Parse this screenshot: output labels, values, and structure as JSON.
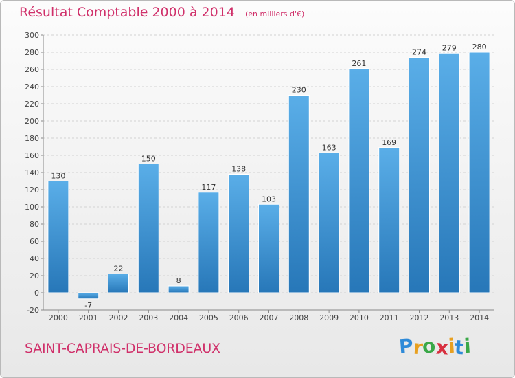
{
  "chart_data": {
    "type": "bar",
    "title": "Résultat Comptable 2000 à 2014",
    "subtitle": "(en milliers d'€)",
    "categories": [
      "2000",
      "2001",
      "2002",
      "2003",
      "2004",
      "2005",
      "2006",
      "2007",
      "2008",
      "2009",
      "2010",
      "2011",
      "2012",
      "2013",
      "2014"
    ],
    "values": [
      130,
      -7,
      22,
      150,
      8,
      117,
      138,
      103,
      230,
      163,
      261,
      169,
      274,
      279,
      280
    ],
    "ylim": [
      -20,
      300
    ],
    "yticks": [
      -20,
      0,
      20,
      40,
      60,
      80,
      100,
      120,
      140,
      160,
      180,
      200,
      220,
      240,
      260,
      280,
      300
    ],
    "grid": true,
    "bar_color_top": "#5aaee8",
    "bar_color_bottom": "#2777b8"
  },
  "footer": {
    "commune": "SAINT-CAPRAIS-DE-BORDEAUX"
  },
  "logo": {
    "letters": [
      {
        "char": "P",
        "color": "#2e8ad8"
      },
      {
        "char": "r",
        "color": "#e8a020"
      },
      {
        "char": "o",
        "color": "#3aa848"
      },
      {
        "char": "x",
        "color": "#d83040"
      },
      {
        "char": "i",
        "color": "#e8a020"
      },
      {
        "char": "t",
        "color": "#2e8ad8"
      },
      {
        "char": "i",
        "color": "#3aa848"
      }
    ]
  }
}
